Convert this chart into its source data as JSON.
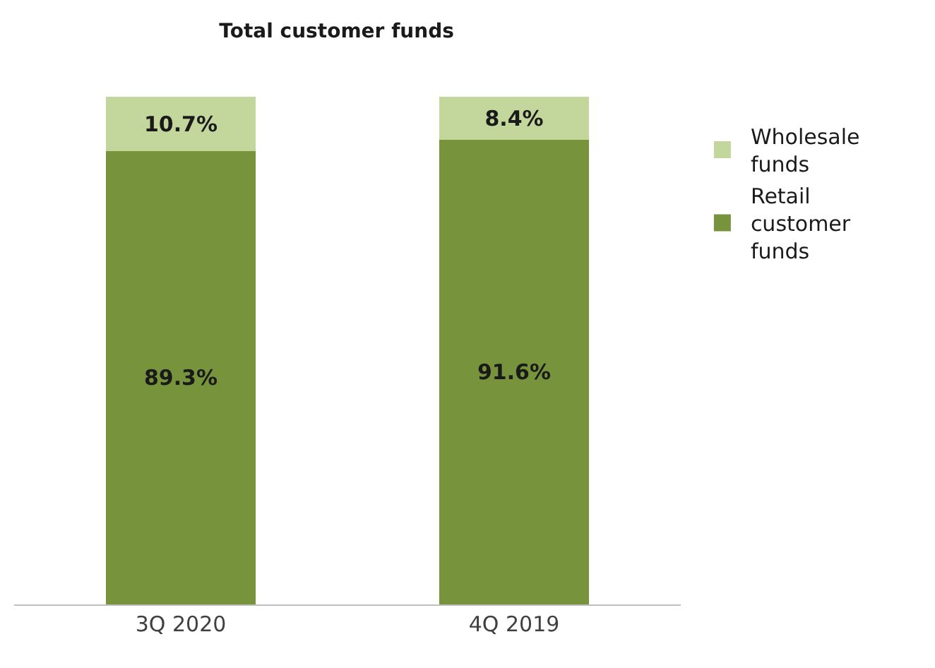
{
  "chart_data": {
    "type": "bar",
    "title": "Total customer funds",
    "stacked": true,
    "legend": "right",
    "categories": [
      "3Q 2020",
      "4Q 2019"
    ],
    "series": [
      {
        "name": "Retail customer funds",
        "color": "#77933c",
        "values": [
          89.3,
          91.6
        ],
        "value_labels": [
          "89.3%",
          "91.6%"
        ]
      },
      {
        "name": "Wholesale funds",
        "color": "#c3d69b",
        "values": [
          10.7,
          8.4
        ],
        "value_labels": [
          "10.7%",
          "8.4%"
        ]
      }
    ]
  }
}
